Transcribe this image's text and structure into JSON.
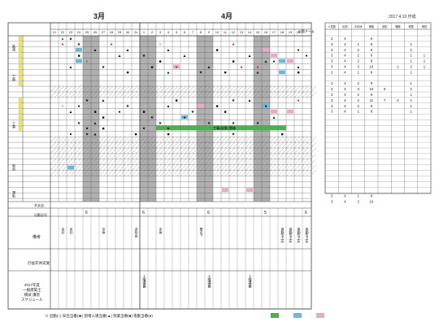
{
  "header": {
    "date_note": "2017.4.10 作成",
    "months": [
      "3月",
      "4月"
    ],
    "team_label": "出勤チーム",
    "dates_march": [
      "21",
      "22",
      "23",
      "24",
      "25",
      "26",
      "27",
      "28",
      "29",
      "30",
      "31"
    ],
    "dates_april": [
      "1",
      "2",
      "3",
      "4",
      "5",
      "6",
      "7",
      "8",
      "9",
      "10",
      "11",
      "12",
      "13",
      "14",
      "15",
      "16",
      "17",
      "18",
      "19",
      "20"
    ],
    "right_cols": [
      "人員数",
      "出勤",
      "平均休",
      "移動",
      "遅刻",
      "職務",
      "残業",
      "夜勤"
    ]
  },
  "sections": {
    "s1": "鉄道",
    "s2": "工務",
    "s3": "工事",
    "s4": "車両",
    "s5": "運転",
    "s6": "本支店"
  },
  "bottom": {
    "attendance_label": "出勤記号",
    "remarks_label": "備考",
    "plan_label": "計画年休実施",
    "schedule_label": "2017年度\n一級建築士\n模試 講習\nスケジュール",
    "remarks_cells": [
      "本社",
      "本社",
      "全休",
      "送別会",
      "全休",
      "要点P",
      "夜勤(予定)",
      "夜勤(予定)",
      "夜勤(予定)",
      "夜勤(予定)"
    ],
    "schedule_cells": [
      "土曜講義",
      "土曜講義",
      "土曜講義"
    ],
    "counts": [
      "6",
      "6",
      "6",
      "5",
      "6"
    ]
  },
  "right_table": {
    "rows": [
      [
        "2",
        "4",
        "",
        "6",
        "",
        "",
        "",
        ""
      ],
      [
        "3",
        "4",
        "1",
        "8",
        "",
        "",
        "1",
        ""
      ],
      [
        "3",
        "4",
        "2",
        "9",
        "",
        "",
        "2",
        ""
      ],
      [
        "3",
        "4",
        "2",
        "9",
        "",
        "",
        "1",
        "1"
      ],
      [
        "3",
        "4",
        "2",
        "9",
        "",
        "",
        "1",
        "1"
      ],
      [
        "3",
        "4",
        "3",
        "10",
        "",
        "1",
        "2",
        "1"
      ],
      [
        "2",
        "4",
        "1",
        "8",
        "",
        "",
        "1",
        ""
      ],
      [
        "3",
        "4",
        "2",
        "9",
        "",
        "",
        "1",
        ""
      ],
      [
        "3",
        "4",
        "3",
        "10",
        "5",
        "",
        "2",
        ""
      ],
      [
        "3",
        "4",
        "2",
        "9",
        "",
        "",
        "1",
        ""
      ],
      [
        "3",
        "4",
        "4",
        "11",
        "7",
        "2",
        "1",
        ""
      ],
      [
        "3",
        "4",
        "2",
        "9",
        "",
        "",
        "1",
        ""
      ],
      [
        "3",
        "4",
        "1",
        "8",
        "",
        "",
        "1",
        ""
      ],
      [
        "3",
        "4",
        "1",
        "8",
        "",
        "",
        "",
        ""
      ],
      [
        "3",
        "4",
        "2",
        "10",
        "",
        "",
        "",
        ""
      ]
    ]
  },
  "banner_text": "工事(出張) 関連",
  "legend": {
    "text": "※ 出勤(○) 早出当番(★) 割増入場当番(▲) 残業当番(■) 夜勤当番(●)",
    "chips": [
      {
        "label": "",
        "color": "#4caf50"
      },
      {
        "label": "",
        "color": "#6bb8d8"
      },
      {
        "label": "",
        "color": "#e8a8c8"
      }
    ]
  },
  "colors": {
    "grid": "#444444",
    "weekend_gray": "#b0b0b0",
    "pink": "#e8a8c8",
    "blue": "#6bb8d8",
    "green": "#4caf50",
    "yellow": "#f2e64a",
    "red": "#d32020"
  }
}
